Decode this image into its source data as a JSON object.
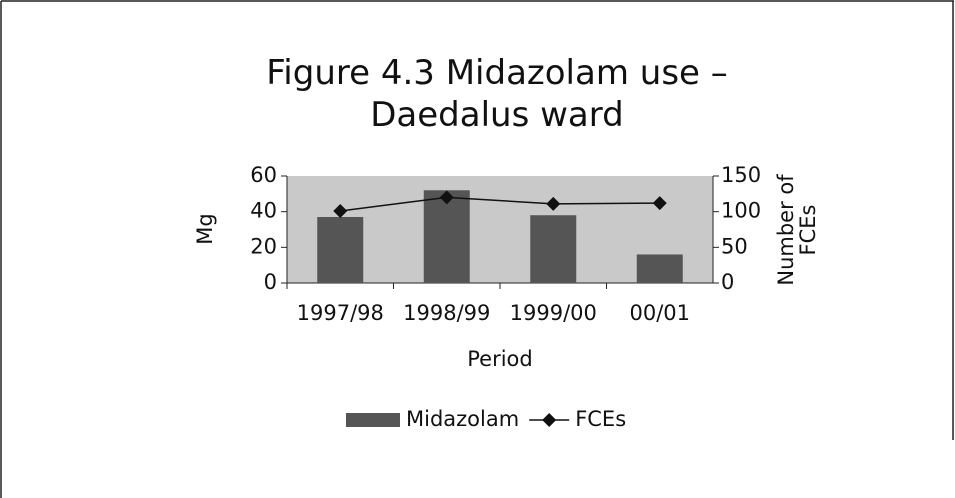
{
  "chart_data": {
    "type": "bar_line",
    "title": "Figure 4.3 Midazolam use – Daedalus ward",
    "xlabel": "Period",
    "ylabel": "Mg",
    "y2label": "Number of FCEs",
    "categories": [
      "1997/98",
      "1998/99",
      "1999/00",
      "00/01"
    ],
    "series": [
      {
        "name": "Midazolam",
        "type": "bar",
        "color": "#555555",
        "values": [
          37,
          52,
          38,
          16
        ]
      },
      {
        "name": "FCEs",
        "type": "line",
        "axis": "y2",
        "color": "#111111",
        "values": [
          101,
          120,
          111,
          112
        ]
      }
    ],
    "ylim": [
      0,
      60
    ],
    "yticks": [
      0,
      20,
      40,
      60
    ],
    "y2lim": [
      0,
      150
    ],
    "y2ticks": [
      0,
      50,
      100,
      150
    ],
    "legend": "bottom"
  }
}
